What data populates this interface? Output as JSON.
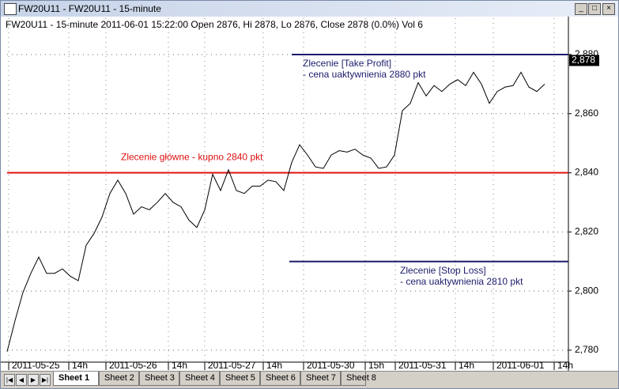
{
  "window": {
    "title": "FW20U11 - FW20U11 - 15-minute"
  },
  "chart_data": {
    "type": "line",
    "header": "FW20U11 - 15-minute 2011-06-01 15:22:00 Open 2876, Hi 2878, Lo 2876, Close 2878 (0.0%) Vol 6",
    "x": [
      0,
      1,
      2,
      3,
      4,
      5,
      6,
      7,
      8,
      9,
      10,
      11,
      12,
      13,
      14,
      15,
      16,
      17,
      18,
      19,
      20,
      21,
      22,
      23,
      24,
      25,
      26,
      27,
      28,
      29,
      30,
      31,
      32,
      33,
      34,
      35,
      36,
      37,
      38,
      39,
      40,
      41,
      42,
      43,
      44,
      45,
      46,
      47,
      48,
      49,
      50,
      51,
      52,
      53,
      54,
      55,
      56,
      57,
      58,
      59,
      60,
      61,
      62,
      63,
      64,
      65,
      66,
      67,
      68
    ],
    "series": [
      {
        "color": "#000000",
        "values": [
          2779.5,
          2790,
          2799.5,
          2806,
          2811.5,
          2806,
          2806,
          2807.5,
          2805,
          2803.5,
          2815.5,
          2819.5,
          2825,
          2833,
          2837.5,
          2833,
          2826,
          2828.5,
          2827.5,
          2830,
          2833,
          2830,
          2828.5,
          2824,
          2821.5,
          2827.5,
          2839.5,
          2834,
          2841,
          2834,
          2833,
          2835.5,
          2835.5,
          2837.5,
          2837,
          2834,
          2843.5,
          2849.5,
          2846,
          2842,
          2841.5,
          2846,
          2847.5,
          2847,
          2848,
          2846,
          2845,
          2841.5,
          2842,
          2846,
          2861,
          2863.5,
          2870.5,
          2866,
          2869.5,
          2867.5,
          2870,
          2871.5,
          2869.5,
          2874,
          2870,
          2863.5,
          2867.5,
          2869,
          2869.5,
          2874,
          2869,
          2867.5,
          2870
        ]
      }
    ],
    "xlim": [
      0,
      71
    ],
    "xticks": [
      {
        "value": 0.2,
        "label": "2011-05-25"
      },
      {
        "value": 7.8,
        "label": "14h"
      },
      {
        "value": 12.5,
        "label": "2011-05-26"
      },
      {
        "value": 20.4,
        "label": "14h"
      },
      {
        "value": 25,
        "label": "2011-05-27"
      },
      {
        "value": 32.4,
        "label": "14h"
      },
      {
        "value": 37.5,
        "label": "2011-05-30"
      },
      {
        "value": 45.3,
        "label": "15h"
      },
      {
        "value": 49.1,
        "label": "2011-05-31"
      },
      {
        "value": 56.7,
        "label": "14h"
      },
      {
        "value": 61.5,
        "label": "2011-06-01"
      },
      {
        "value": 69.2,
        "label": "14h"
      }
    ],
    "ylim": [
      2776.5,
      2892.3
    ],
    "yticks": [
      {
        "value": 2780,
        "label": "2,780"
      },
      {
        "value": 2800,
        "label": "2,800"
      },
      {
        "value": 2820,
        "label": "2,820"
      },
      {
        "value": 2840,
        "label": "2,840"
      },
      {
        "value": 2860,
        "label": "2,860"
      },
      {
        "value": 2880,
        "label": "2,880"
      }
    ],
    "grid": true,
    "last_price": {
      "value": 2878,
      "label": "2,878"
    },
    "levels": [
      {
        "value": 2880,
        "color": "#1c1c6c",
        "start": 36,
        "text": [
          "Zlecenie [Take Profit]",
          "- cena uaktywnienia 2880 pkt"
        ],
        "text_color": "#1c1c6c"
      },
      {
        "value": 2840,
        "color": "#e01010",
        "start": 0,
        "text": [
          "Zlecenie główne - kupno 2840 pkt"
        ],
        "text_color": "#e01010"
      },
      {
        "value": 2810,
        "color": "#1c1c6c",
        "start": 35.7,
        "text": [
          "Zlecenie [Stop Loss]",
          "- cena uaktywnienia 2810 pkt"
        ],
        "text_color": "#1c1c6c"
      }
    ]
  },
  "tabs": [
    "Sheet 1",
    "Sheet 2",
    "Sheet 3",
    "Sheet 4",
    "Sheet 5",
    "Sheet 6",
    "Sheet 7",
    "Sheet 8"
  ]
}
